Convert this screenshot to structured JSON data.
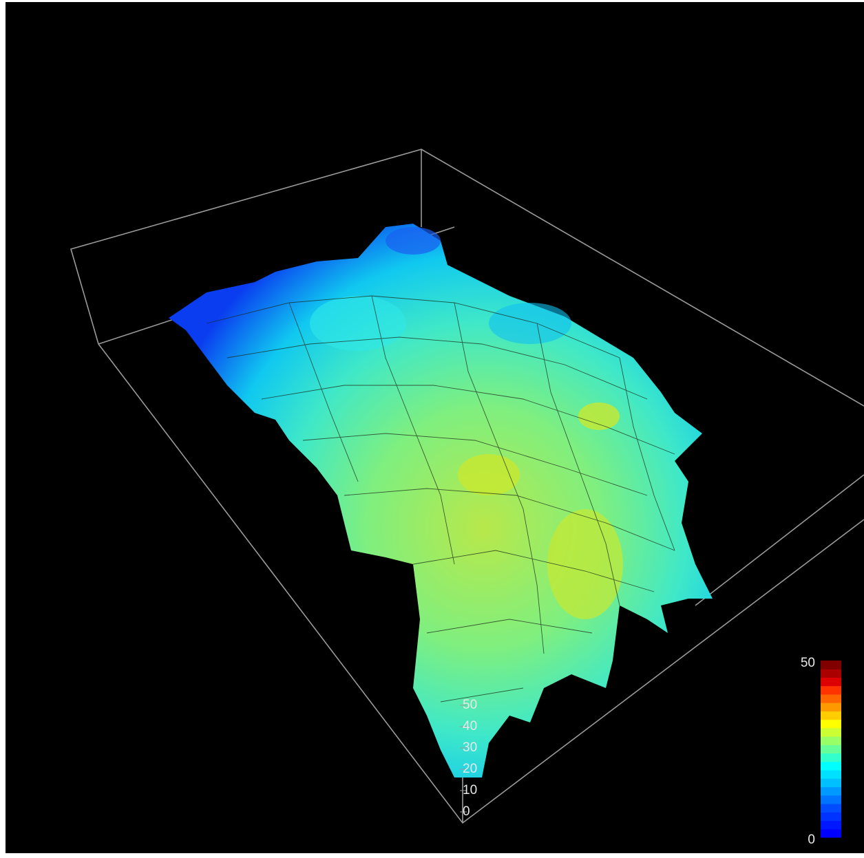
{
  "chart_data": {
    "type": "surface",
    "zlim": [
      0,
      50
    ],
    "zticks": [
      0,
      10,
      20,
      30,
      40,
      50
    ],
    "colorbar": {
      "lim": [
        0,
        50
      ],
      "ticks": [
        0,
        50
      ],
      "colors": [
        "#0000ff",
        "#0018ff",
        "#0033ff",
        "#004dff",
        "#0073ff",
        "#0099ff",
        "#00c0ff",
        "#00e0ff",
        "#00ffff",
        "#33ffcc",
        "#66ff99",
        "#99ff66",
        "#ccff33",
        "#ffff00",
        "#ffcc00",
        "#ff9900",
        "#ff6600",
        "#ff3300",
        "#dd0000",
        "#aa0000",
        "#800000"
      ]
    }
  }
}
